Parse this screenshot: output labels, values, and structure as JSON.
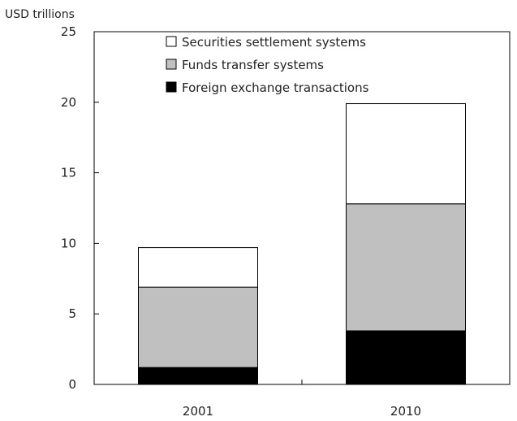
{
  "chart_data": {
    "type": "bar",
    "stacked": true,
    "ylabel": "USD trillions",
    "xlabel": "",
    "ylim": [
      0,
      25
    ],
    "yticks": [
      "0",
      "5",
      "10",
      "15",
      "20",
      "25"
    ],
    "categories": [
      "2001",
      "2010"
    ],
    "series": [
      {
        "name": "Foreign exchange transactions",
        "values": [
          1.2,
          3.8
        ],
        "color": "#000000"
      },
      {
        "name": "Funds transfer systems",
        "values": [
          5.7,
          9.0
        ],
        "color": "#c0c0c0"
      },
      {
        "name": "Securities settlement systems",
        "values": [
          2.8,
          7.1
        ],
        "color": "#ffffff"
      }
    ],
    "legend": {
      "placement": "top",
      "order": [
        "Securities settlement systems",
        "Funds transfer systems",
        "Foreign exchange transactions"
      ]
    },
    "grid": false
  }
}
